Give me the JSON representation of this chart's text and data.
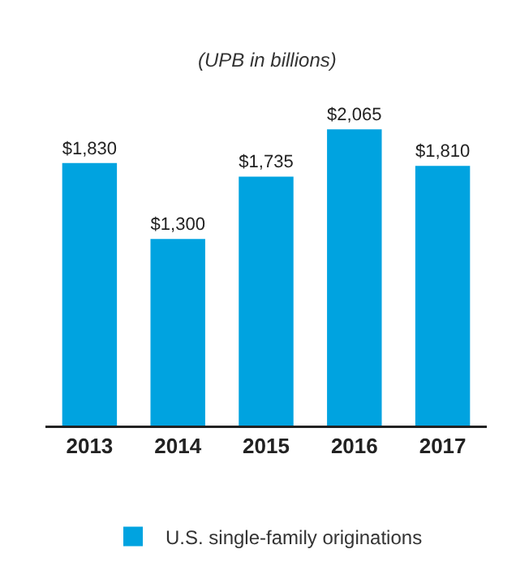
{
  "chart_data": {
    "type": "bar",
    "subtitle": "(UPB in billions)",
    "categories": [
      "2013",
      "2014",
      "2015",
      "2016",
      "2017"
    ],
    "series": [
      {
        "name": "U.S. single-family originations",
        "color": "#00a3e0",
        "values": [
          1830,
          1300,
          1735,
          2065,
          1810
        ],
        "value_labels": [
          "$1,830",
          "$1,300",
          "$1,735",
          "$2,065",
          "$1,810"
        ]
      }
    ],
    "legend": "bottom",
    "grid": false
  }
}
